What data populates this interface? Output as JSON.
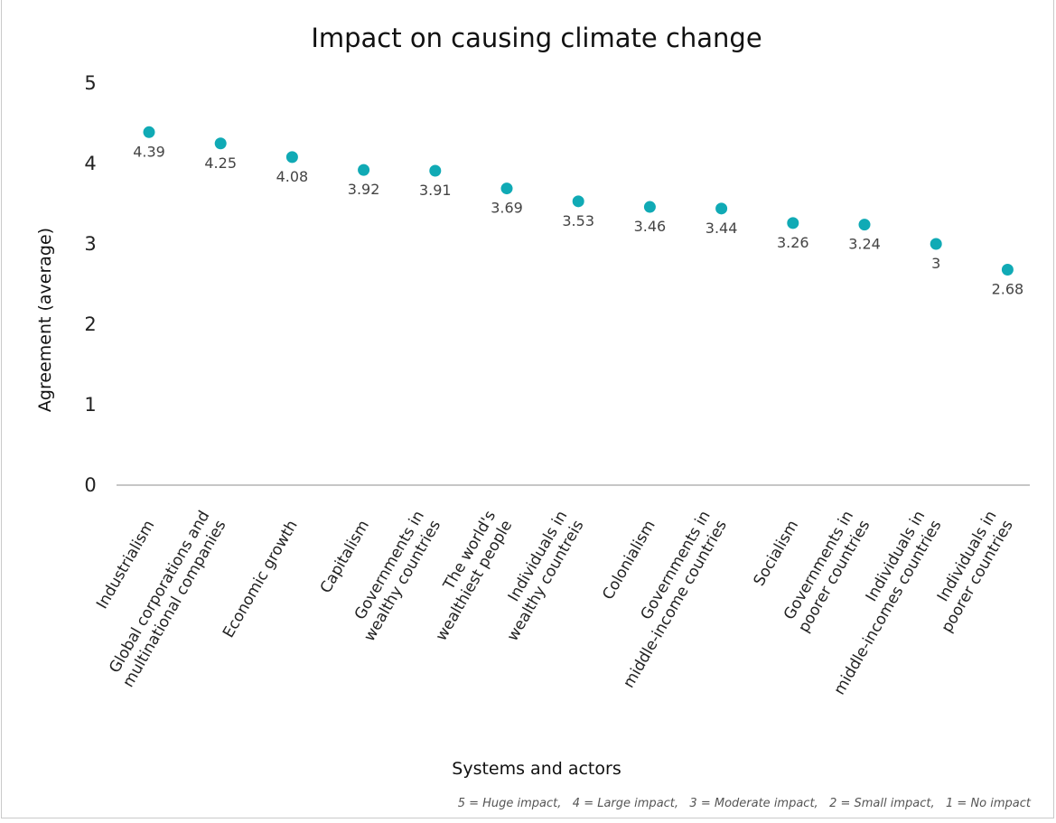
{
  "chart_data": {
    "type": "scatter",
    "title": "Impact on causing climate change",
    "xlabel": "Systems and actors",
    "ylabel": "Agreement (average)",
    "ylim": [
      0,
      5
    ],
    "yticks": [
      "0",
      "1",
      "2",
      "3",
      "4",
      "5"
    ],
    "grid": false,
    "legend": "none",
    "marker_color": "#10aab5",
    "categories": [
      [
        "Industrialism"
      ],
      [
        "Global corporations and",
        "multinational companies"
      ],
      [
        "Economic growth"
      ],
      [
        "Capitalism"
      ],
      [
        "Governments in",
        "wealthy countries"
      ],
      [
        "The world's",
        "wealthiest people"
      ],
      [
        "Individuals in",
        "wealthy countreis"
      ],
      [
        "Colonialism"
      ],
      [
        "Governments in",
        "middle-income countries"
      ],
      [
        "Socialism"
      ],
      [
        "Governments in",
        "poorer countries"
      ],
      [
        "Individuals in",
        "middle-incomes countries"
      ],
      [
        "Individuals in",
        "poorer countries"
      ]
    ],
    "values": [
      4.39,
      4.25,
      4.08,
      3.92,
      3.91,
      3.69,
      3.53,
      3.46,
      3.44,
      3.26,
      3.24,
      3,
      2.68
    ],
    "footnote": "5 = Huge impact,   4 = Large impact,   3 = Moderate impact,   2 = Small impact,   1 = No impact"
  }
}
